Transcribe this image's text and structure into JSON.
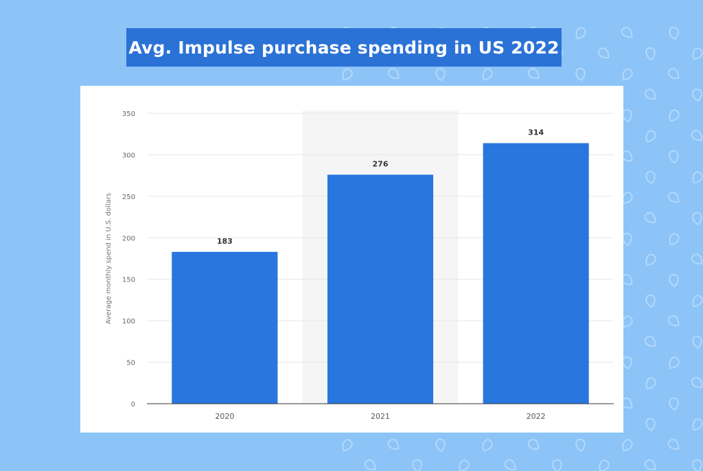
{
  "page": {
    "title": "Avg. Impulse purchase spending in US 2022",
    "background_color": "#8cc4f8",
    "banner_color": "#2b72d6"
  },
  "chart_data": {
    "type": "bar",
    "title": "Avg. Impulse purchase spending in US 2022",
    "categories": [
      "2020",
      "2021",
      "2022"
    ],
    "values": [
      183,
      276,
      314
    ],
    "data_labels": [
      "183",
      "276",
      "314"
    ],
    "xlabel": "",
    "ylabel": "Average monthly spend in U.S. dollars",
    "ylim": [
      0,
      350
    ],
    "yticks": [
      0,
      50,
      100,
      150,
      200,
      250,
      300,
      350
    ],
    "highlighted_category": "2021",
    "grid": true,
    "bar_color": "#2876de"
  }
}
